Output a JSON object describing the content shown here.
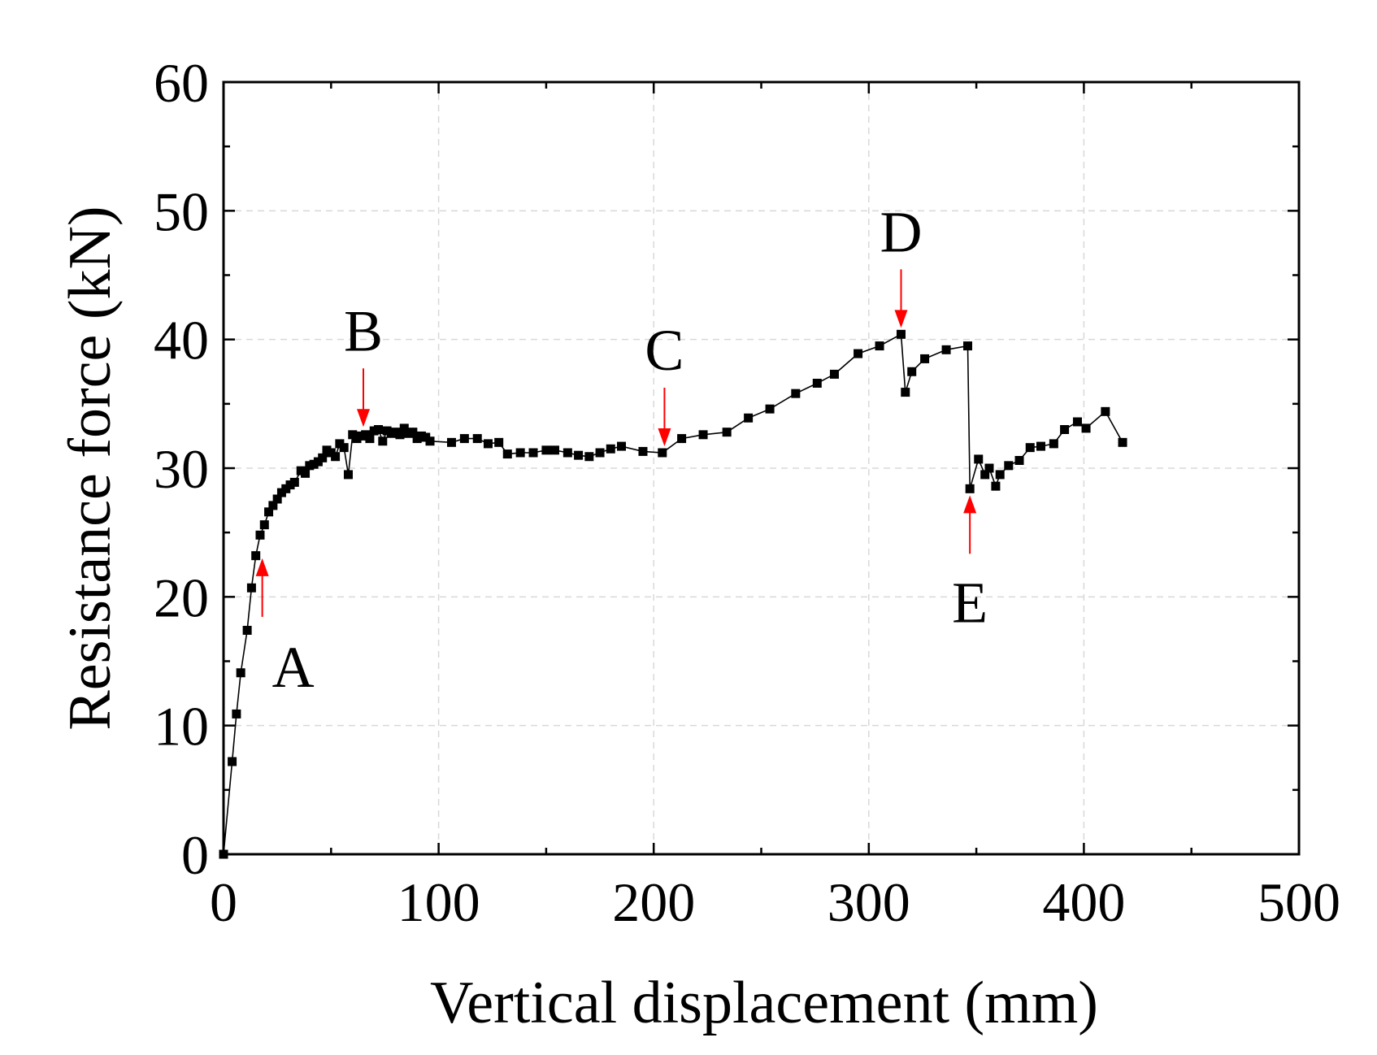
{
  "chart_data": {
    "type": "scatter",
    "title": "",
    "xlabel": "Vertical displacement  (mm)",
    "ylabel": "Resistance force (kN)",
    "xlim": [
      0,
      500
    ],
    "ylim": [
      0,
      60
    ],
    "xticks": [
      0,
      100,
      200,
      300,
      400,
      500
    ],
    "yticks": [
      0,
      10,
      20,
      30,
      40,
      50,
      60
    ],
    "xtick_labels": [
      "0",
      "100",
      "200",
      "300",
      "400",
      "500"
    ],
    "ytick_labels": [
      "0",
      "10",
      "20",
      "30",
      "40",
      "50",
      "60"
    ],
    "grid": true,
    "series": [
      {
        "name": "Resistance force",
        "marker": "square",
        "color": "#000000",
        "x": [
          0,
          4,
          6,
          8,
          11,
          13,
          15,
          17,
          19,
          21,
          23,
          25,
          27,
          29,
          31,
          33,
          36,
          38,
          40,
          42,
          44,
          46,
          48,
          50,
          52,
          54,
          56,
          58,
          60,
          62,
          64,
          66,
          68,
          70,
          72,
          74,
          76,
          78,
          80,
          82,
          84,
          86,
          88,
          90,
          92,
          94,
          96,
          106,
          112,
          118,
          123,
          128,
          132,
          138,
          144,
          150,
          154,
          160,
          165,
          170,
          175,
          180,
          185,
          195,
          204,
          213,
          223,
          234,
          244,
          254,
          266,
          276,
          284,
          295,
          305,
          315,
          317,
          320,
          326,
          336,
          346,
          347,
          351,
          354,
          356,
          359,
          361,
          365,
          370,
          375,
          380,
          386,
          391,
          397,
          401,
          410,
          418
        ],
        "y": [
          0,
          7.2,
          10.9,
          14.1,
          17.4,
          20.7,
          23.2,
          24.8,
          25.6,
          26.6,
          27.1,
          27.6,
          28.1,
          28.4,
          28.7,
          28.9,
          29.8,
          29.6,
          30.2,
          30.3,
          30.5,
          30.8,
          31.4,
          31.2,
          30.9,
          31.9,
          31.6,
          29.5,
          32.6,
          32.3,
          32.5,
          32.6,
          32.3,
          32.9,
          33.0,
          32.1,
          32.9,
          32.7,
          32.8,
          32.6,
          33.1,
          32.7,
          32.8,
          32.3,
          32.5,
          32.4,
          32.1,
          32.0,
          32.3,
          32.3,
          31.9,
          32.0,
          31.1,
          31.2,
          31.2,
          31.4,
          31.4,
          31.2,
          31.0,
          30.9,
          31.2,
          31.5,
          31.7,
          31.3,
          31.2,
          32.3,
          32.6,
          32.8,
          33.9,
          34.6,
          35.8,
          36.6,
          37.3,
          38.9,
          39.5,
          40.4,
          35.9,
          37.5,
          38.5,
          39.2,
          39.5,
          28.4,
          30.7,
          29.5,
          30.0,
          28.6,
          29.5,
          30.2,
          30.6,
          31.6,
          31.7,
          31.9,
          33.0,
          33.6,
          33.1,
          34.4,
          32.0
        ]
      }
    ],
    "annotations": [
      {
        "label": "A",
        "x": 18,
        "y": 23.5,
        "arrow": "up"
      },
      {
        "label": "B",
        "x": 65,
        "y": 32.7,
        "arrow": "down"
      },
      {
        "label": "C",
        "x": 205,
        "y": 31.2,
        "arrow": "down"
      },
      {
        "label": "D",
        "x": 315,
        "y": 40.4,
        "arrow": "down"
      },
      {
        "label": "E",
        "x": 347,
        "y": 28.4,
        "arrow": "up"
      }
    ],
    "annotation_arrow_color": "#ff0000"
  }
}
